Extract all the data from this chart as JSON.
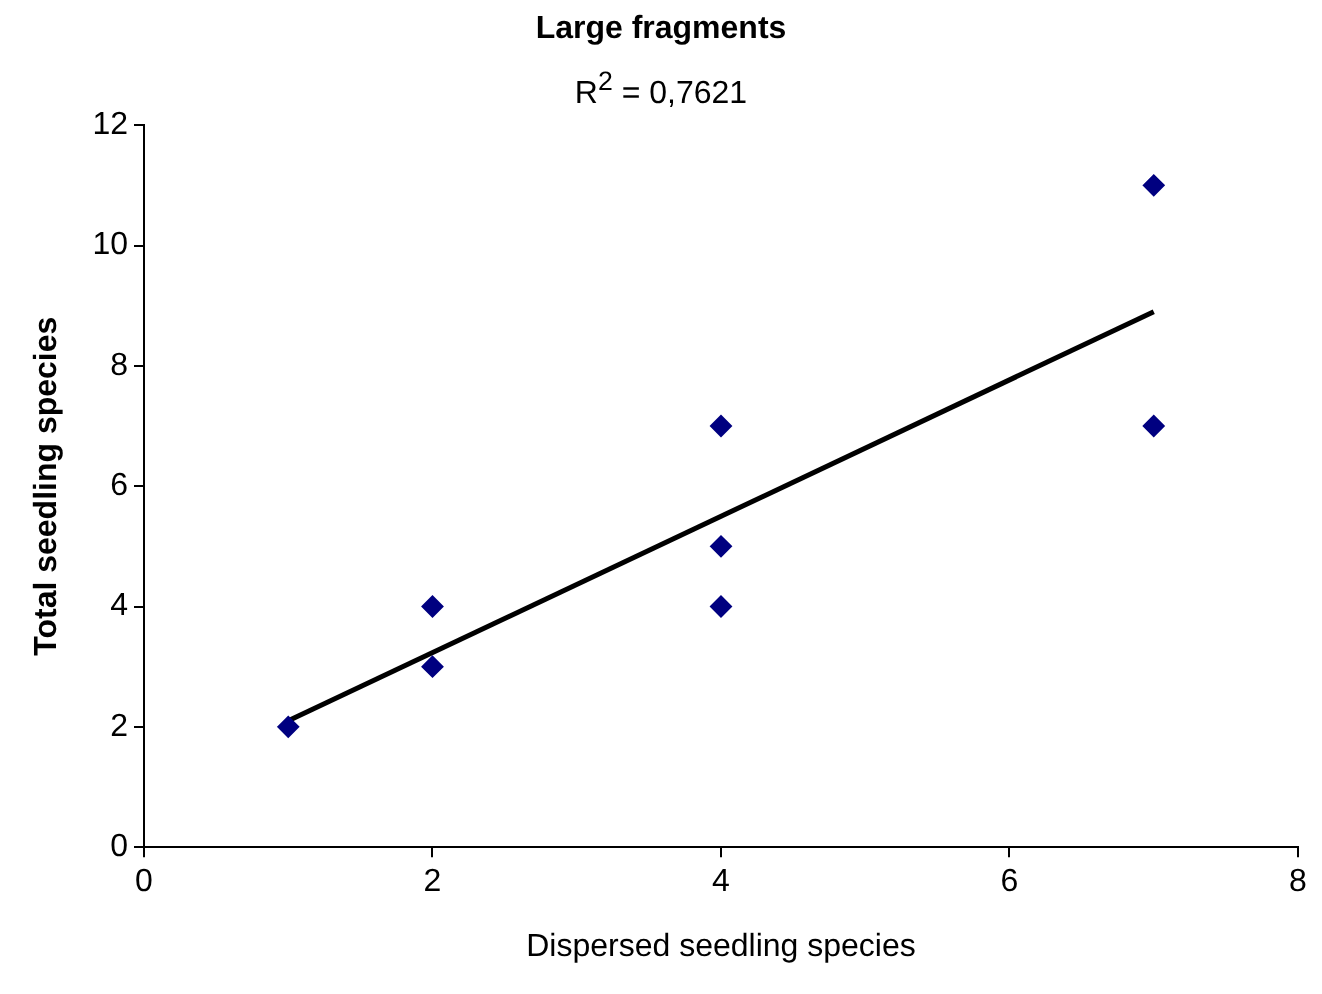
{
  "chart_data": {
    "type": "scatter",
    "title": "Large fragments",
    "annotations": [
      "R$^{2}$ = 0,7621"
    ],
    "xlabel": "Dispersed seedling species",
    "ylabel": "Total seedling species",
    "xlim": [
      0,
      8
    ],
    "xticks": [
      0,
      2,
      4,
      6,
      8
    ],
    "ylim": [
      0,
      12
    ],
    "yticks": [
      0,
      2,
      4,
      6,
      8,
      10,
      12
    ],
    "grid": false,
    "legend": false,
    "marker": "diamond",
    "series": [
      {
        "color": "#000080",
        "x": [
          1,
          2,
          2,
          4,
          4,
          4,
          7,
          7
        ],
        "values": [
          2,
          4,
          3,
          7,
          5,
          4,
          11,
          7
        ]
      },
      {
        "type": "line",
        "color": "#000000",
        "line_style": "solid",
        "marker": "none",
        "x": [
          1,
          7
        ],
        "values": [
          2.1,
          8.9
        ]
      }
    ]
  }
}
